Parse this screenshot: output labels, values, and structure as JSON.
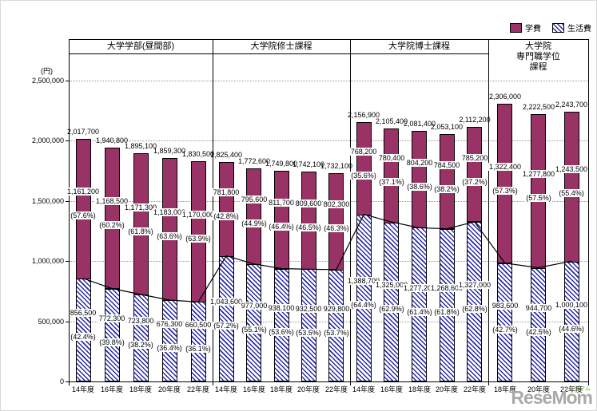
{
  "legend": {
    "items": [
      {
        "label": "学費",
        "style": "solid"
      },
      {
        "label": "生活費",
        "style": "hatch"
      }
    ]
  },
  "y_axis": {
    "unit": "(円)",
    "tick_labels": [
      "0",
      "500,000",
      "1,000,000",
      "1,500,000",
      "2,000,000",
      "2,500,000"
    ]
  },
  "watermark": {
    "brand": "ReseMom",
    "kana": "リセマム"
  },
  "colors": {
    "tuition": "#993366",
    "living_stripe": "#2929a8",
    "axis": "#000000",
    "grid": "#969696",
    "watermark_gray": "#a9a9a9",
    "watermark_green": "#6cb33f"
  },
  "chart_data": {
    "type": "bar",
    "stacked": true,
    "title": "",
    "unit": "円",
    "ylim": [
      0,
      2500000
    ],
    "ytick_step": 500000,
    "grid": true,
    "legend_position": "top-right",
    "series_names": [
      "学費",
      "生活費"
    ],
    "groups": [
      {
        "label": "大学学部(昼間部)",
        "label_lines": [
          "大学学部(昼間部)"
        ],
        "bars": [
          {
            "year": "14年度",
            "total": 2017700,
            "tuition": 1161200,
            "tuition_pct": 57.6,
            "living": 856500,
            "living_pct": 42.4
          },
          {
            "year": "16年度",
            "total": 1940800,
            "tuition": 1168500,
            "tuition_pct": 60.2,
            "living": 772300,
            "living_pct": 39.8
          },
          {
            "year": "18年度",
            "total": 1895100,
            "tuition": 1171300,
            "tuition_pct": 61.8,
            "living": 723800,
            "living_pct": 38.2
          },
          {
            "year": "20年度",
            "total": 1859300,
            "tuition": 1183000,
            "tuition_pct": 63.6,
            "living": 676300,
            "living_pct": 36.4
          },
          {
            "year": "22年度",
            "total": 1830500,
            "tuition": 1170000,
            "tuition_pct": 63.9,
            "living": 660500,
            "living_pct": 36.1
          }
        ]
      },
      {
        "label": "大学院修士課程",
        "label_lines": [
          "大学院修士課程"
        ],
        "bars": [
          {
            "year": "14年度",
            "total": 1825400,
            "tuition": 781800,
            "tuition_pct": 42.8,
            "living": 1043600,
            "living_pct": 57.2
          },
          {
            "year": "16年度",
            "total": 1772600,
            "tuition": 795600,
            "tuition_pct": 44.9,
            "living": 977000,
            "living_pct": 55.1
          },
          {
            "year": "18年度",
            "total": 1749800,
            "tuition": 811700,
            "tuition_pct": 46.4,
            "living": 938100,
            "living_pct": 53.6
          },
          {
            "year": "20年度",
            "total": 1742100,
            "tuition": 809600,
            "tuition_pct": 46.5,
            "living": 932500,
            "living_pct": 53.5
          },
          {
            "year": "22年度",
            "total": 1732100,
            "tuition": 802300,
            "tuition_pct": 46.3,
            "living": 929800,
            "living_pct": 53.7
          }
        ]
      },
      {
        "label": "大学院博士課程",
        "label_lines": [
          "大学院博士課程"
        ],
        "bars": [
          {
            "year": "14年度",
            "total": 2156900,
            "tuition": 768200,
            "tuition_pct": 35.6,
            "living": 1388700,
            "living_pct": 64.4
          },
          {
            "year": "16年度",
            "total": 2105400,
            "tuition": 780400,
            "tuition_pct": 37.1,
            "living": 1325000,
            "living_pct": 62.9
          },
          {
            "year": "18年度",
            "total": 2081400,
            "tuition": 804200,
            "tuition_pct": 38.6,
            "living": 1277200,
            "living_pct": 61.4
          },
          {
            "year": "20年度",
            "total": 2053100,
            "tuition": 784500,
            "tuition_pct": 38.2,
            "living": 1268600,
            "living_pct": 61.8
          },
          {
            "year": "22年度",
            "total": 2112200,
            "tuition": 785200,
            "tuition_pct": 37.2,
            "living": 1327000,
            "living_pct": 62.8
          }
        ]
      },
      {
        "label": "大学院専門職学位課程",
        "label_lines": [
          "大学院",
          "専門職学位",
          "課程"
        ],
        "bars": [
          {
            "year": "18年度",
            "total": 2306000,
            "tuition": 1322400,
            "tuition_pct": 57.3,
            "living": 983600,
            "living_pct": 42.7
          },
          {
            "year": "20年度",
            "total": 2222500,
            "tuition": 1277800,
            "tuition_pct": 57.5,
            "living": 944700,
            "living_pct": 42.5
          },
          {
            "year": "22年度",
            "total": 2243700,
            "tuition": 1243500,
            "tuition_pct": 55.4,
            "living": 1000100,
            "living_pct": 44.6
          }
        ]
      }
    ]
  }
}
